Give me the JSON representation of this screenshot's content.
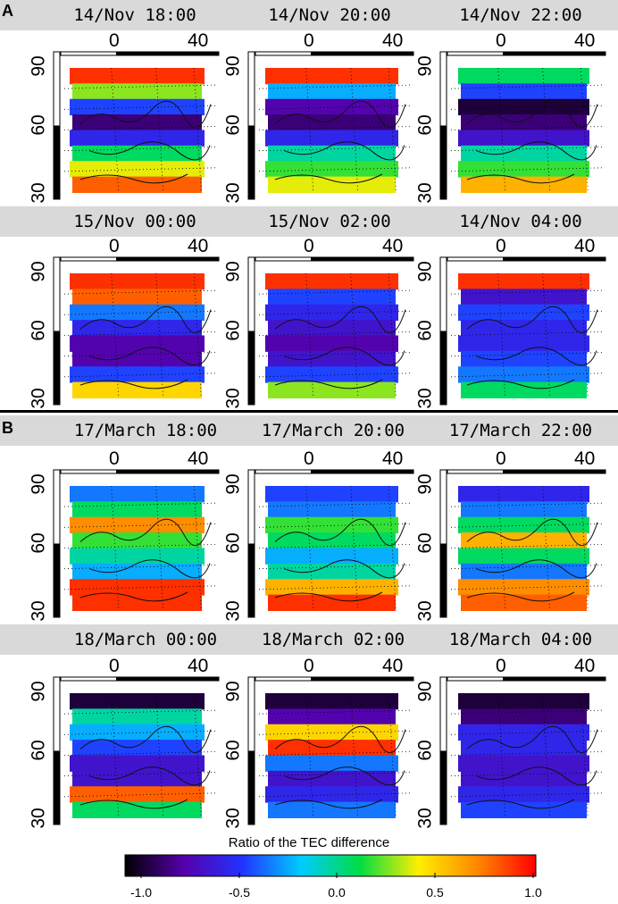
{
  "sections": [
    {
      "label": "A",
      "rows": [
        {
          "titles": [
            "14/Nov 18:00",
            "14/Nov 20:00",
            "14/Nov 22:00"
          ]
        },
        {
          "titles": [
            "15/Nov 00:00",
            "15/Nov 02:00",
            "14/Nov 04:00"
          ]
        }
      ]
    },
    {
      "label": "B",
      "rows": [
        {
          "titles": [
            "17/March 18:00",
            "17/March 20:00",
            "17/March 22:00"
          ]
        },
        {
          "titles": [
            "18/March 00:00",
            "18/March 02:00",
            "18/March 04:00"
          ]
        }
      ]
    }
  ],
  "axes": {
    "lon_ticks": [
      "0",
      "40"
    ],
    "lat_ticks": [
      "90",
      "60",
      "30"
    ]
  },
  "colorbar": {
    "title": "Ratio of the TEC difference",
    "ticks": [
      "-1.0",
      "-0.5",
      "0.0",
      "0.5",
      "1.0"
    ],
    "range": [
      -1.0,
      1.0
    ],
    "stops": [
      "#000000",
      "#5500aa",
      "#2233ff",
      "#00ccff",
      "#00dd44",
      "#ffee00",
      "#ff8800",
      "#ff0000"
    ]
  },
  "chart_data": {
    "type": "heatmap",
    "title": "",
    "colorbar_label": "Ratio of the TEC difference",
    "value_range": [
      -1.0,
      1.0
    ],
    "x_ticks": [
      0,
      40
    ],
    "y_ticks": [
      90,
      60,
      30
    ],
    "panels": [
      {
        "section": "A",
        "time": "14/Nov 18:00",
        "bands": [
          0.9,
          0.3,
          -0.4,
          -0.8,
          -0.5,
          0.1,
          0.4,
          0.8
        ]
      },
      {
        "section": "A",
        "time": "14/Nov 20:00",
        "bands": [
          0.9,
          -0.2,
          -0.7,
          -0.8,
          -0.5,
          0.0,
          0.2,
          0.4
        ]
      },
      {
        "section": "A",
        "time": "14/Nov 22:00",
        "bands": [
          0.1,
          -0.4,
          -0.9,
          -0.8,
          -0.6,
          0.0,
          0.2,
          0.6
        ]
      },
      {
        "section": "A",
        "time": "15/Nov 00:00",
        "bands": [
          0.9,
          0.8,
          -0.3,
          -0.5,
          -0.7,
          -0.7,
          -0.4,
          0.5
        ]
      },
      {
        "section": "A",
        "time": "15/Nov 02:00",
        "bands": [
          0.9,
          -0.4,
          -0.5,
          -0.6,
          -0.7,
          -0.6,
          -0.4,
          0.3
        ]
      },
      {
        "section": "A",
        "time": "14/Nov 04:00",
        "bands": [
          0.9,
          -0.6,
          -0.4,
          -0.5,
          -0.5,
          -0.4,
          -0.3,
          0.1
        ]
      },
      {
        "section": "B",
        "time": "17/March 18:00",
        "bands": [
          -0.3,
          0.1,
          0.7,
          0.2,
          0.0,
          -0.2,
          0.9,
          0.9
        ]
      },
      {
        "section": "B",
        "time": "17/March 20:00",
        "bands": [
          -0.4,
          -0.3,
          0.2,
          0.1,
          -0.2,
          0.0,
          0.6,
          0.9
        ]
      },
      {
        "section": "B",
        "time": "17/March 22:00",
        "bands": [
          -0.5,
          -0.3,
          0.1,
          0.6,
          0.1,
          -0.3,
          0.7,
          0.8
        ]
      },
      {
        "section": "B",
        "time": "18/March 00:00",
        "bands": [
          -0.9,
          0.0,
          -0.2,
          -0.4,
          -0.6,
          -0.6,
          0.8,
          0.1
        ]
      },
      {
        "section": "B",
        "time": "18/March 02:00",
        "bands": [
          -0.9,
          -0.7,
          0.5,
          0.9,
          -0.3,
          -0.6,
          -0.5,
          -0.3
        ]
      },
      {
        "section": "B",
        "time": "18/March 04:00",
        "bands": [
          -0.9,
          -0.8,
          -0.5,
          -0.5,
          -0.6,
          -0.6,
          -0.5,
          -0.4
        ]
      }
    ]
  }
}
